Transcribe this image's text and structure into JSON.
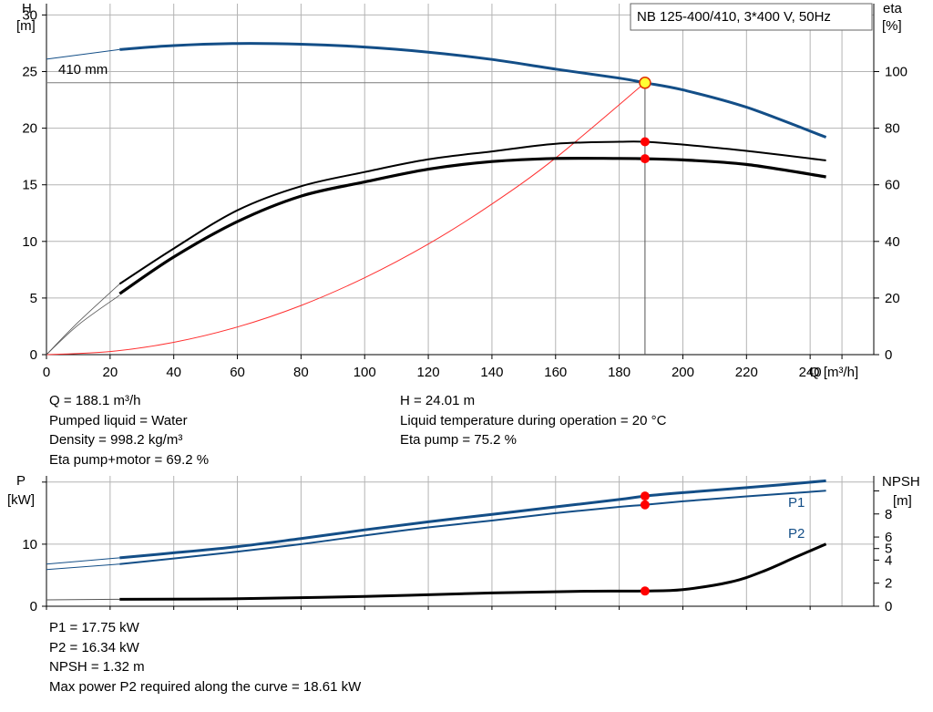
{
  "chart_data": [
    {
      "type": "line",
      "title": "NB 125-400/410, 3*400 V, 50Hz",
      "xlabel": "Q [m³/h]",
      "ylabel_left": [
        "H",
        "[m]"
      ],
      "ylabel_right": [
        "eta",
        "[%]"
      ],
      "xlim": [
        0,
        260
      ],
      "ylim_left": [
        0,
        31
      ],
      "ylim_right": [
        0,
        124
      ],
      "x_ticks": [
        "0",
        "20",
        "40",
        "60",
        "80",
        "100",
        "120",
        "140",
        "160",
        "180",
        "200",
        "220",
        "240"
      ],
      "y_ticks_left": [
        "0",
        "5",
        "10",
        "15",
        "20",
        "25",
        "30"
      ],
      "y_ticks_right": [
        "0",
        "20",
        "40",
        "60",
        "80",
        "100"
      ],
      "grid": true,
      "impeller_label": "410 mm",
      "series": [
        {
          "id": "H",
          "axis": "left",
          "color": "#134e87",
          "dashed_x": [
            0,
            23
          ],
          "dashed_y": [
            26.1,
            26.95
          ],
          "x": [
            23,
            40,
            60,
            80,
            100,
            120,
            140,
            160,
            180,
            188.1,
            200,
            220,
            245
          ],
          "y": [
            26.95,
            27.3,
            27.48,
            27.42,
            27.17,
            26.72,
            26.07,
            25.22,
            24.42,
            24.01,
            23.38,
            21.85,
            19.2
          ]
        },
        {
          "id": "eta_pump_motor",
          "axis": "right",
          "color": "#000000",
          "dashed_x": [
            0,
            10,
            23
          ],
          "dashed_y": [
            0,
            10.5,
            21
          ],
          "x": [
            23,
            40,
            60,
            80,
            100,
            120,
            140,
            160,
            180,
            188.1,
            200,
            220,
            245
          ],
          "y": [
            21.5,
            34.5,
            47,
            56,
            61,
            65.5,
            68.2,
            69.3,
            69.3,
            69.2,
            68.8,
            67.2,
            62.8
          ]
        },
        {
          "id": "eta_pump",
          "axis": "right",
          "color": "#000000",
          "dashed_x": [
            0,
            10,
            23
          ],
          "dashed_y": [
            0,
            11.5,
            25
          ],
          "x": [
            23,
            40,
            60,
            80,
            100,
            120,
            140,
            160,
            180,
            188.1,
            200,
            220,
            245
          ],
          "y": [
            25,
            37.5,
            51,
            59.5,
            64.5,
            69,
            71.8,
            74.5,
            75.2,
            75.2,
            74.2,
            72,
            68.6
          ]
        },
        {
          "id": "system_curve",
          "axis": "left",
          "color": "#ff3030",
          "x": [
            0,
            20,
            40,
            60,
            80,
            100,
            120,
            140,
            160,
            188.1
          ],
          "y": [
            0,
            0.27,
            1.09,
            2.44,
            4.34,
            6.79,
            9.77,
            13.3,
            17.37,
            24.01
          ]
        }
      ],
      "operating_point": {
        "x": 188.1,
        "H": 24.01,
        "eta_pump": 75.2,
        "eta_pump_motor": 69.2
      }
    },
    {
      "type": "line",
      "ylabel_left": [
        "P",
        "[kW]"
      ],
      "ylabel_right": [
        "NPSH",
        "[m]"
      ],
      "xlim": [
        0,
        260
      ],
      "ylim_left": [
        0,
        21
      ],
      "ylim_right": [
        0,
        11.3
      ],
      "y_ticks_left": [
        "0",
        "10"
      ],
      "y_ticks_right": [
        "0",
        "2",
        "4",
        "5",
        "6",
        "8"
      ],
      "grid": true,
      "series": [
        {
          "id": "P1",
          "name": "P1",
          "axis": "left",
          "color": "#134e87",
          "dashed_x": [
            0,
            23
          ],
          "dashed_y": [
            6.8,
            7.8
          ],
          "x": [
            23,
            40,
            60,
            80,
            100,
            120,
            140,
            160,
            180,
            188.1,
            200,
            220,
            245
          ],
          "y": [
            7.8,
            8.6,
            9.6,
            10.9,
            12.3,
            13.6,
            14.8,
            16.0,
            17.2,
            17.75,
            18.3,
            19.1,
            20.2
          ]
        },
        {
          "id": "P2",
          "name": "P2",
          "axis": "left",
          "color": "#134e87",
          "dashed_x": [
            0,
            23
          ],
          "dashed_y": [
            5.9,
            6.8
          ],
          "x": [
            23,
            40,
            60,
            80,
            100,
            120,
            140,
            160,
            180,
            188.1,
            200,
            220,
            245
          ],
          "y": [
            6.8,
            7.7,
            8.8,
            10.0,
            11.4,
            12.7,
            13.8,
            15.0,
            16.0,
            16.34,
            16.9,
            17.7,
            18.6
          ]
        },
        {
          "id": "NPSH",
          "axis": "right",
          "color": "#000000",
          "dashed_x": [
            0,
            23
          ],
          "dashed_y": [
            0.55,
            0.6
          ],
          "x": [
            23,
            60,
            100,
            140,
            170,
            188.1,
            200,
            215,
            225,
            235,
            245
          ],
          "y": [
            0.6,
            0.65,
            0.85,
            1.15,
            1.3,
            1.32,
            1.45,
            2.1,
            3.0,
            4.2,
            5.4
          ]
        }
      ],
      "operating_point": {
        "x": 188.1,
        "P1": 17.75,
        "P2": 16.34,
        "NPSH": 1.32
      }
    }
  ],
  "results_top": {
    "left": [
      "Q = 188.1 m³/h",
      "Pumped liquid = Water",
      "Density = 998.2 kg/m³",
      "Eta pump+motor = 69.2 %"
    ],
    "right": [
      "H = 24.01 m",
      "Liquid temperature during operation = 20 °C",
      "Eta pump = 75.2 %"
    ]
  },
  "results_bottom": [
    "P1 = 17.75 kW",
    "P2 = 16.34 kW",
    "NPSH = 1.32 m",
    "Max power P2 required along the curve = 18.61 kW"
  ],
  "colors": {
    "grid": "#b4b4b4",
    "h_curve": "#134e87",
    "system_curve": "#ff3030",
    "op_marker": "#ff0000",
    "op_marker_h": "#ffff33"
  }
}
